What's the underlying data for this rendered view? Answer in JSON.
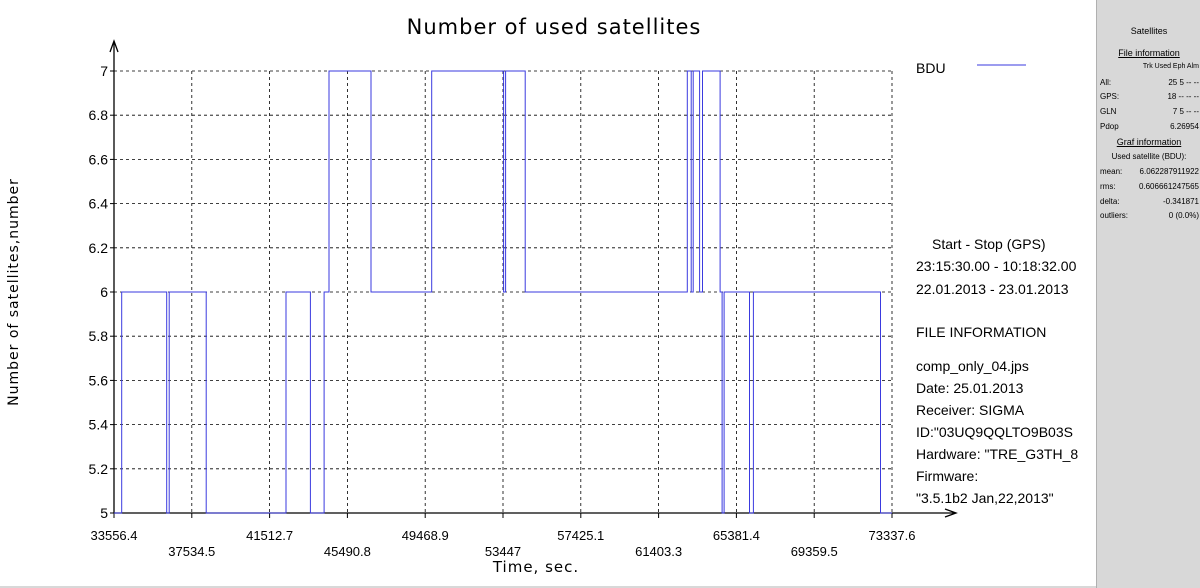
{
  "chart_data": {
    "type": "line",
    "title": "Number of used satellites",
    "xlabel": "Time, sec.",
    "ylabel": "Number of satellites,number",
    "xlim": [
      33556.4,
      73337.6
    ],
    "ylim": [
      5,
      7
    ],
    "grid": true,
    "x_ticks": [
      33556.4,
      37534.5,
      41512.7,
      45490.8,
      49468.9,
      53447,
      57425.1,
      61403.3,
      65381.4,
      69359.5,
      73337.6
    ],
    "x_tick_labels": [
      "33556.4",
      "37534.5",
      "41512.7",
      "45490.8",
      "49468.9",
      "53447",
      "57425.1",
      "61403.3",
      "65381.4",
      "69359.5",
      "73337.6"
    ],
    "y_ticks": [
      5,
      5.2,
      5.4,
      5.6,
      5.8,
      6,
      6.2,
      6.4,
      6.6,
      6.8,
      7
    ],
    "y_tick_labels": [
      "5",
      "5.2",
      "5.4",
      "5.6",
      "5.8",
      "6",
      "6.2",
      "6.4",
      "6.6",
      "6.8",
      "7"
    ],
    "legend": {
      "position": "top-right"
    },
    "series": [
      {
        "name": "BDU",
        "color": "#3a3adf",
        "step": true,
        "points": [
          [
            33556.4,
            5
          ],
          [
            33950,
            5
          ],
          [
            33950,
            6
          ],
          [
            36250,
            6
          ],
          [
            36250,
            5
          ],
          [
            36380,
            5
          ],
          [
            36380,
            6
          ],
          [
            38270,
            6
          ],
          [
            38270,
            5
          ],
          [
            42350,
            5
          ],
          [
            42350,
            6
          ],
          [
            43600,
            6
          ],
          [
            43600,
            5
          ],
          [
            44300,
            5
          ],
          [
            44300,
            6
          ],
          [
            44550,
            6
          ],
          [
            44550,
            7
          ],
          [
            46700,
            7
          ],
          [
            46700,
            6
          ],
          [
            49800,
            6
          ],
          [
            49800,
            7
          ],
          [
            53480,
            7
          ],
          [
            53480,
            6
          ],
          [
            53580,
            6
          ],
          [
            53580,
            7
          ],
          [
            54580,
            7
          ],
          [
            54580,
            6
          ],
          [
            62870,
            6
          ],
          [
            62870,
            7
          ],
          [
            63070,
            7
          ],
          [
            63070,
            6
          ],
          [
            63170,
            6
          ],
          [
            63170,
            7
          ],
          [
            63500,
            7
          ],
          [
            63500,
            6
          ],
          [
            63650,
            6
          ],
          [
            63650,
            7
          ],
          [
            64550,
            7
          ],
          [
            64550,
            6
          ],
          [
            64650,
            6
          ],
          [
            64650,
            5
          ],
          [
            64750,
            5
          ],
          [
            64750,
            6
          ],
          [
            66050,
            6
          ],
          [
            66050,
            5
          ],
          [
            66250,
            5
          ],
          [
            66250,
            6
          ],
          [
            72750,
            6
          ],
          [
            72750,
            5
          ],
          [
            73337.6,
            5
          ]
        ]
      }
    ]
  },
  "info": {
    "start_stop_title": "Start  -  Stop  (GPS)",
    "time_range": "23:15:30.00 - 10:18:32.00",
    "date_range": "22.01.2013 - 23.01.2013",
    "file_information_title": "FILE INFORMATION",
    "file_name": "comp_only_04.jps",
    "date": "Date: 25.01.2013",
    "receiver": "Receiver: SIGMA",
    "id": "ID:\"03UQ9QQLTO9B03S",
    "hardware": "Hardware: \"TRE_G3TH_8",
    "firmware_label": "Firmware:",
    "firmware_value": "\"3.5.1b2 Jan,22,2013\""
  },
  "side_panel": {
    "title": "Satellites",
    "file_info_title": "File information",
    "columns": "Trk Used Eph Alm",
    "rows": [
      {
        "label": "All:",
        "values": "25    5    --   --"
      },
      {
        "label": "GPS:",
        "values": "18    --   --   --"
      },
      {
        "label": "GLN",
        "values": "7    5    --   --"
      },
      {
        "label": "Pdop",
        "values": "6.26954"
      }
    ],
    "graf_info_title": "Graf information",
    "used_caption": "Used satellite  (BDU):",
    "stats": [
      {
        "label": "mean:",
        "value": "6.062287911922"
      },
      {
        "label": "rms:",
        "value": "0.606661247565"
      },
      {
        "label": "delta:",
        "value": "-0.341871"
      },
      {
        "label": "outliers:",
        "value": "0 (0.0%)"
      }
    ]
  }
}
